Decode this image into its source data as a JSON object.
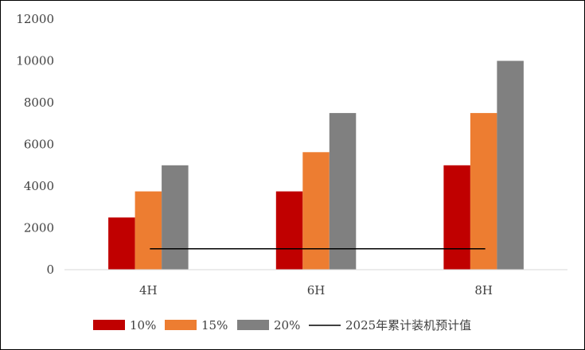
{
  "chart_data": {
    "type": "bar",
    "title": "",
    "xlabel": "",
    "ylabel": "",
    "categories": [
      "4H",
      "6H",
      "8H"
    ],
    "series": [
      {
        "name": "10%",
        "values": [
          2500,
          3750,
          5000
        ],
        "color": "#C00000"
      },
      {
        "name": "15%",
        "values": [
          3750,
          5625,
          7500
        ],
        "color": "#ED7D31"
      },
      {
        "name": "20%",
        "values": [
          5000,
          7500,
          10000
        ],
        "color": "#808080"
      }
    ],
    "reference_line": {
      "name": "2025年累计装机预计值",
      "value": 1000,
      "color": "#000000"
    },
    "ylim": [
      0,
      12000
    ],
    "yticks": [
      0,
      2000,
      4000,
      6000,
      8000,
      10000,
      12000
    ],
    "grid": false,
    "legend_position": "bottom"
  }
}
